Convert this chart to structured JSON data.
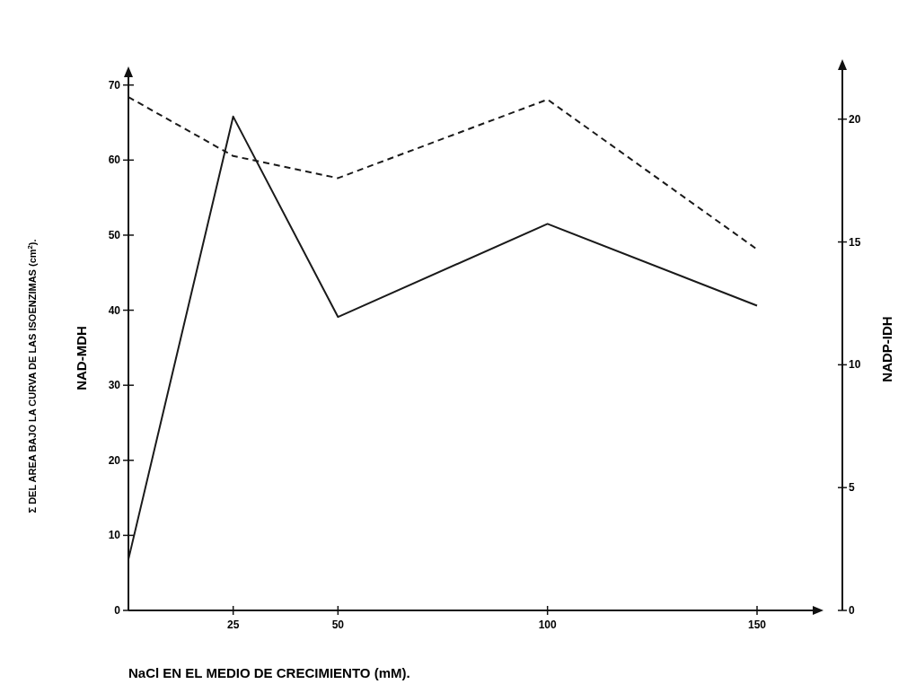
{
  "chart_data": {
    "type": "line",
    "xlabel": "NaCl EN EL MEDIO DE CRECIMIENTO (mM).",
    "ylabel": "NAD-MDH",
    "y2label": "NADP-IDH",
    "annotations": [
      "Σ DEL AREA BAJO LA CURVA DE LAS ISOENZIMAS (cm$^{2}$)."
    ],
    "x": [
      0,
      25,
      50,
      100,
      150
    ],
    "xlim": [
      0,
      165
    ],
    "xticks": [
      25,
      50,
      100,
      150
    ],
    "ylim": [
      0,
      72
    ],
    "yticks": [
      0,
      10,
      20,
      30,
      40,
      50,
      60,
      70
    ],
    "y2lim": [
      0,
      22
    ],
    "y2ticks": [
      0,
      5,
      10,
      15,
      20
    ],
    "grid": false,
    "series": [
      {
        "color": "#1a1a1a",
        "line_style": "solid",
        "values": [
          6.8,
          65.8,
          39.1,
          51.5,
          40.6
        ]
      },
      {
        "color": "#1a1a1a",
        "line_style": "dashed",
        "axis": "y2",
        "values": [
          20.9,
          18.5,
          17.6,
          20.8,
          14.7
        ]
      }
    ]
  }
}
